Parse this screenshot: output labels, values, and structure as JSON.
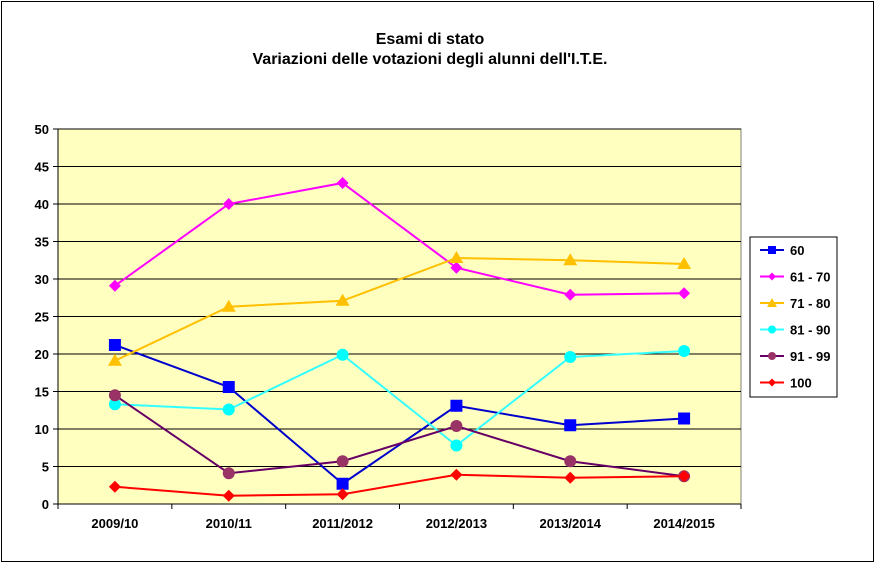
{
  "chart_data": {
    "type": "line",
    "title": [
      "Esami di stato",
      "Variazioni delle votazioni degli alunni dell'I.T.E."
    ],
    "xlabel": "",
    "ylabel": "",
    "categories": [
      "2009/10",
      "2010/11",
      "2011/2012",
      "2012/2013",
      "2013/2014",
      "2014/2015"
    ],
    "ylim": [
      0,
      50
    ],
    "yticks": [
      0,
      5,
      10,
      15,
      20,
      25,
      30,
      35,
      40,
      45,
      50
    ],
    "grid": "horizontal",
    "plot_background": "#FFFFC0",
    "legend_position": "right",
    "series": [
      {
        "name": "60",
        "values": [
          21.2,
          15.6,
          2.7,
          13.1,
          10.5,
          11.4
        ],
        "line_color": "#0000CC",
        "marker_color": "#0000FF",
        "marker": "square"
      },
      {
        "name": "61 - 70",
        "values": [
          29.1,
          40.0,
          42.8,
          31.5,
          27.9,
          28.1
        ],
        "line_color": "#FF00FF",
        "marker_color": "#FF00FF",
        "marker": "diamond"
      },
      {
        "name": "71 - 80",
        "values": [
          19.1,
          26.3,
          27.1,
          32.8,
          32.5,
          32.0
        ],
        "line_color": "#FFC000",
        "marker_color": "#FFC000",
        "marker": "triangle"
      },
      {
        "name": "81 - 90",
        "values": [
          13.3,
          12.6,
          19.9,
          7.8,
          19.6,
          20.4
        ],
        "line_color": "#33FFFF",
        "marker_color": "#00FFFF",
        "marker": "circle"
      },
      {
        "name": "91 - 99",
        "values": [
          14.5,
          4.1,
          5.7,
          10.4,
          5.7,
          3.7
        ],
        "line_color": "#660066",
        "marker_color": "#993366",
        "marker": "circle"
      },
      {
        "name": "100",
        "values": [
          2.3,
          1.1,
          1.3,
          3.9,
          3.5,
          3.7
        ],
        "line_color": "#FF0000",
        "marker_color": "#FF0000",
        "marker": "diamond"
      }
    ]
  }
}
